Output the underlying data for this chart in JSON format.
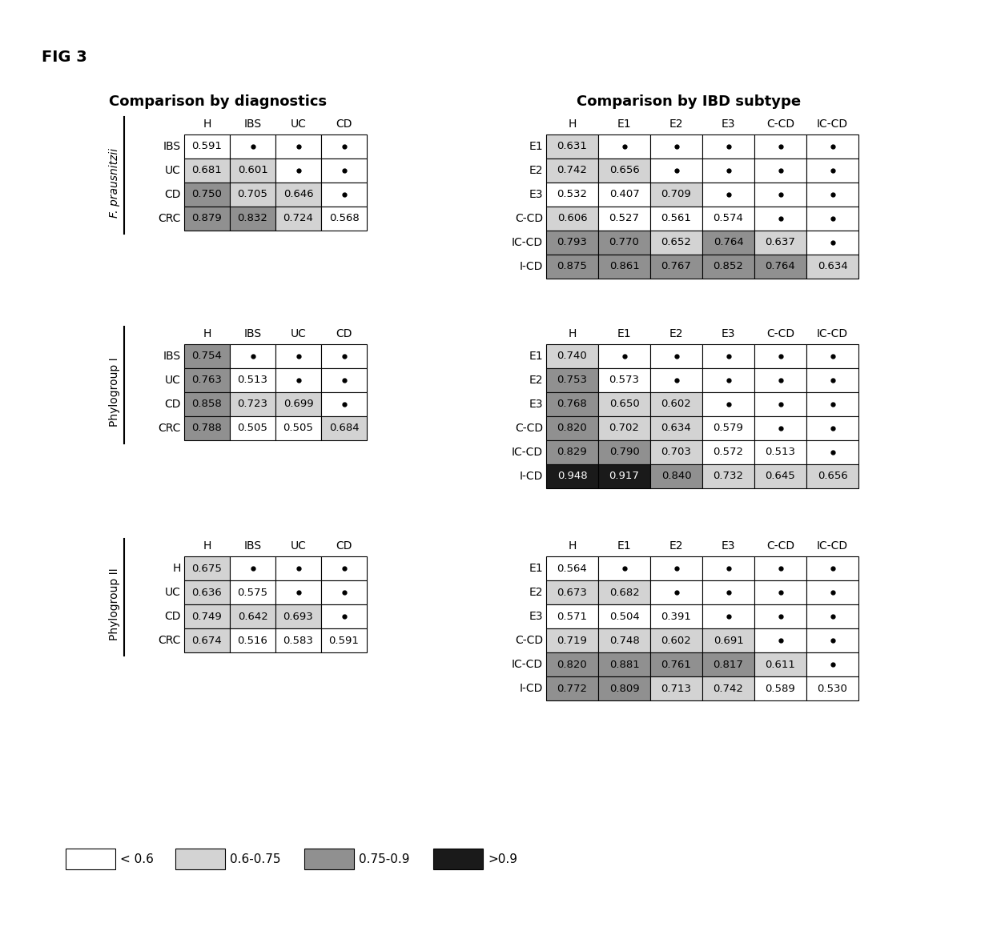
{
  "fig_label": "FIG 3",
  "title_left": "Comparison by diagnostics",
  "title_right": "Comparison by IBD subtype",
  "color_white": "#ffffff",
  "color_light": "#d3d3d3",
  "color_medium": "#909090",
  "color_dark": "#1a1a1a",
  "color_border": "#000000",
  "diag_tables": [
    {
      "row_label": "F. prausnitzii",
      "italic": true,
      "col_headers": [
        "H",
        "IBS",
        "UC",
        "CD"
      ],
      "row_headers": [
        "IBS",
        "UC",
        "CD",
        "CRC"
      ],
      "data": [
        [
          0.591,
          null,
          null,
          null
        ],
        [
          0.681,
          0.601,
          null,
          null
        ],
        [
          0.75,
          0.705,
          0.646,
          null
        ],
        [
          0.879,
          0.832,
          0.724,
          0.568
        ]
      ]
    },
    {
      "row_label": "Phylogroup I",
      "italic": false,
      "col_headers": [
        "H",
        "IBS",
        "UC",
        "CD"
      ],
      "row_headers": [
        "IBS",
        "UC",
        "CD",
        "CRC"
      ],
      "data": [
        [
          0.754,
          null,
          null,
          null
        ],
        [
          0.763,
          0.513,
          null,
          null
        ],
        [
          0.858,
          0.723,
          0.699,
          null
        ],
        [
          0.788,
          0.505,
          0.505,
          0.684
        ]
      ]
    },
    {
      "row_label": "Phylogroup II",
      "italic": false,
      "col_headers": [
        "H",
        "IBS",
        "UC",
        "CD"
      ],
      "row_headers": [
        "H",
        "UC",
        "CD",
        "CRC"
      ],
      "data": [
        [
          0.675,
          null,
          null,
          null
        ],
        [
          0.636,
          0.575,
          null,
          null
        ],
        [
          0.749,
          0.642,
          0.693,
          null
        ],
        [
          0.674,
          0.516,
          0.583,
          0.591
        ]
      ]
    }
  ],
  "ibd_tables": [
    {
      "col_headers": [
        "H",
        "E1",
        "E2",
        "E3",
        "C-CD",
        "IC-CD"
      ],
      "row_headers": [
        "E1",
        "E2",
        "E3",
        "C-CD",
        "IC-CD",
        "I-CD"
      ],
      "data": [
        [
          0.631,
          null,
          null,
          null,
          null,
          null
        ],
        [
          0.742,
          0.656,
          null,
          null,
          null,
          null
        ],
        [
          0.532,
          0.407,
          0.709,
          null,
          null,
          null
        ],
        [
          0.606,
          0.527,
          0.561,
          0.574,
          null,
          null
        ],
        [
          0.793,
          0.77,
          0.652,
          0.764,
          0.637,
          null
        ],
        [
          0.875,
          0.861,
          0.767,
          0.852,
          0.764,
          0.634
        ]
      ]
    },
    {
      "col_headers": [
        "H",
        "E1",
        "E2",
        "E3",
        "C-CD",
        "IC-CD"
      ],
      "row_headers": [
        "E1",
        "E2",
        "E3",
        "C-CD",
        "IC-CD",
        "I-CD"
      ],
      "data": [
        [
          0.74,
          null,
          null,
          null,
          null,
          null
        ],
        [
          0.753,
          0.573,
          null,
          null,
          null,
          null
        ],
        [
          0.768,
          0.65,
          0.602,
          null,
          null,
          null
        ],
        [
          0.82,
          0.702,
          0.634,
          0.579,
          null,
          null
        ],
        [
          0.829,
          0.79,
          0.703,
          0.572,
          0.513,
          null
        ],
        [
          0.948,
          0.917,
          0.84,
          0.732,
          0.645,
          0.656
        ]
      ]
    },
    {
      "col_headers": [
        "H",
        "E1",
        "E2",
        "E3",
        "C-CD",
        "IC-CD"
      ],
      "row_headers": [
        "E1",
        "E2",
        "E3",
        "C-CD",
        "IC-CD",
        "I-CD"
      ],
      "data": [
        [
          0.564,
          null,
          null,
          null,
          null,
          null
        ],
        [
          0.673,
          0.682,
          null,
          null,
          null,
          null
        ],
        [
          0.571,
          0.504,
          0.391,
          null,
          null,
          null
        ],
        [
          0.719,
          0.748,
          0.602,
          0.691,
          null,
          null
        ],
        [
          0.82,
          0.881,
          0.761,
          0.817,
          0.611,
          null
        ],
        [
          0.772,
          0.809,
          0.713,
          0.742,
          0.589,
          0.53
        ]
      ]
    }
  ],
  "legend_items": [
    {
      "color": "#ffffff",
      "label": "< 0.6"
    },
    {
      "color": "#d3d3d3",
      "label": "0.6-0.75"
    },
    {
      "color": "#909090",
      "label": "0.75-0.9"
    },
    {
      "color": "#1a1a1a",
      "label": ">0.9"
    }
  ]
}
